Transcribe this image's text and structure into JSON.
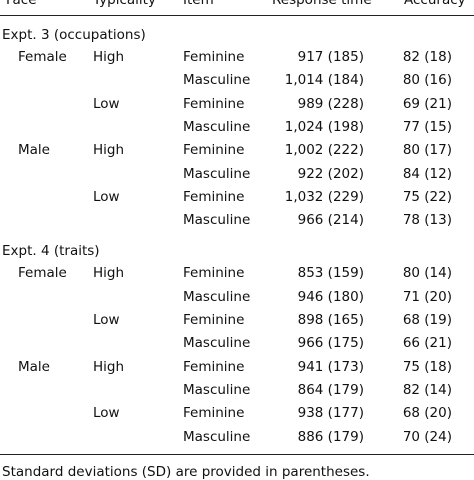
{
  "header": {
    "face": "Face",
    "typicality": "Typicality",
    "item": "Item",
    "response_time": "Response time",
    "accuracy": "Accuracy"
  },
  "sections": [
    {
      "title": "Expt. 3 (occupations)",
      "rows": [
        {
          "face": "Female",
          "typicality": "High",
          "item": "Feminine",
          "rt": "917 (185)",
          "acc": "82 (18)"
        },
        {
          "face": "",
          "typicality": "",
          "item": "Masculine",
          "rt": "1,014 (184)",
          "acc": "80 (16)"
        },
        {
          "face": "",
          "typicality": "Low",
          "item": "Feminine",
          "rt": "989 (228)",
          "acc": "69 (21)"
        },
        {
          "face": "",
          "typicality": "",
          "item": "Masculine",
          "rt": "1,024 (198)",
          "acc": "77 (15)"
        },
        {
          "face": "Male",
          "typicality": "High",
          "item": "Feminine",
          "rt": "1,002 (222)",
          "acc": "80 (17)"
        },
        {
          "face": "",
          "typicality": "",
          "item": "Masculine",
          "rt": "922 (202)",
          "acc": "84 (12)"
        },
        {
          "face": "",
          "typicality": "Low",
          "item": "Feminine",
          "rt": "1,032 (229)",
          "acc": "75 (22)"
        },
        {
          "face": "",
          "typicality": "",
          "item": "Masculine",
          "rt": "966 (214)",
          "acc": "78 (13)"
        }
      ]
    },
    {
      "title": "Expt. 4 (traits)",
      "rows": [
        {
          "face": "Female",
          "typicality": "High",
          "item": "Feminine",
          "rt": "853 (159)",
          "acc": "80 (14)"
        },
        {
          "face": "",
          "typicality": "",
          "item": "Masculine",
          "rt": "946 (180)",
          "acc": "71 (20)"
        },
        {
          "face": "",
          "typicality": "Low",
          "item": "Feminine",
          "rt": "898 (165)",
          "acc": "68 (19)"
        },
        {
          "face": "",
          "typicality": "",
          "item": "Masculine",
          "rt": "966 (175)",
          "acc": "66 (21)"
        },
        {
          "face": "Male",
          "typicality": "High",
          "item": "Feminine",
          "rt": "941 (173)",
          "acc": "75 (18)"
        },
        {
          "face": "",
          "typicality": "",
          "item": "Masculine",
          "rt": "864 (179)",
          "acc": "82 (14)"
        },
        {
          "face": "",
          "typicality": "Low",
          "item": "Feminine",
          "rt": "938 (177)",
          "acc": "68 (20)"
        },
        {
          "face": "",
          "typicality": "",
          "item": "Masculine",
          "rt": "886 (179)",
          "acc": "70 (24)"
        }
      ]
    }
  ],
  "footnote": "Standard deviations (SD) are provided in parentheses."
}
